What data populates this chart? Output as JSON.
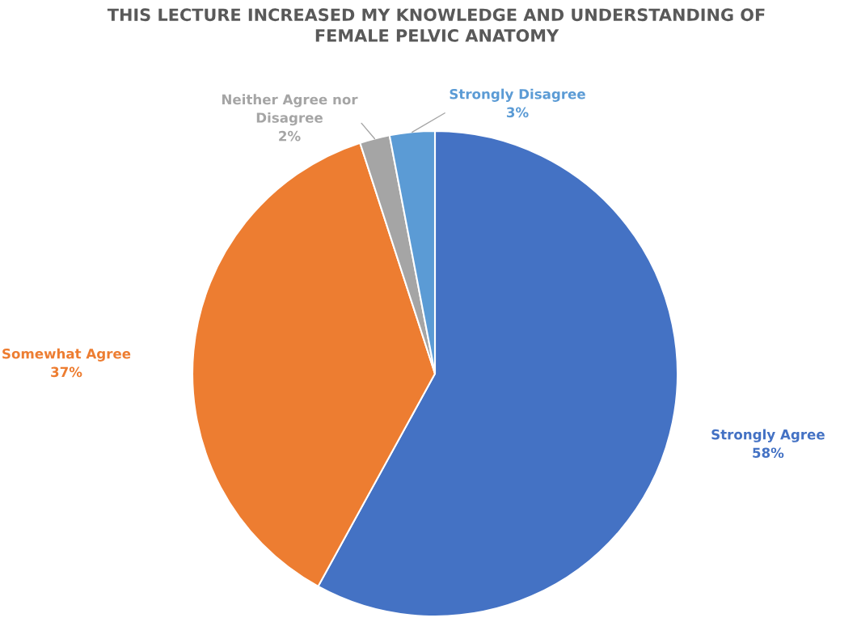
{
  "chart_data": {
    "type": "pie",
    "title": "THIS LECTURE INCREASED MY KNOWLEDGE AND UNDERSTANDING OF\nFEMALE PELVIC ANATOMY",
    "categories": [
      "Strongly Agree",
      "Somewhat Agree",
      "Neither Agree nor\nDisagree",
      "Strongly Disagree"
    ],
    "values": [
      58,
      37,
      2,
      3
    ],
    "colors": [
      "#4472c4",
      "#ed7d31",
      "#a5a5a5",
      "#5b9bd5"
    ],
    "value_labels": [
      "58%",
      "37%",
      "2%",
      "3%"
    ],
    "legend": false
  }
}
